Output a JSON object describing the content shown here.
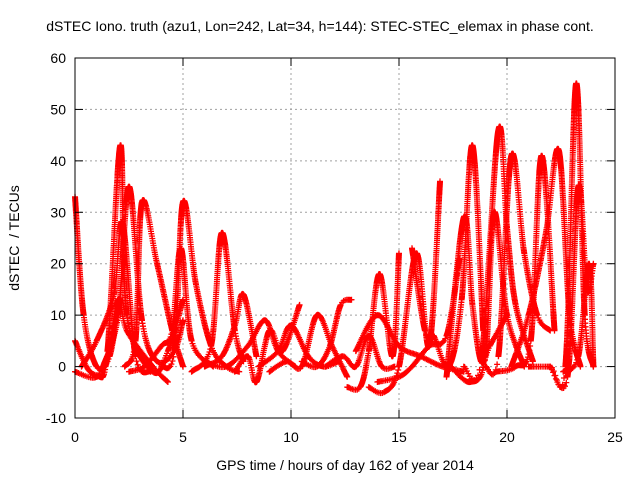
{
  "chart_data": {
    "type": "scatter",
    "title": "dSTEC Iono. truth (azu1, Lon=242, Lat=34, h=144): STEC-STEC_elemax in phase cont.",
    "xlabel": "GPS time / hours of day 162 of year 2014",
    "ylabel": "dSTEC  / TECUs",
    "xlim": [
      0,
      25
    ],
    "ylim": [
      -10,
      60
    ],
    "xticks": [
      0,
      5,
      10,
      15,
      20,
      25
    ],
    "yticks": [
      -10,
      0,
      10,
      20,
      30,
      40,
      50,
      60
    ],
    "grid": true,
    "marker": "+",
    "color": "#ff0000",
    "series": [
      {
        "x": [
          0.0,
          0.4,
          1.0,
          1.6,
          2.0
        ],
        "y": [
          33,
          10,
          0,
          2,
          12
        ]
      },
      {
        "x": [
          0.0,
          0.7,
          1.4,
          2.0,
          2.4,
          3.6,
          4.3
        ],
        "y": [
          5,
          -1,
          0,
          13,
          7,
          0,
          -3
        ]
      },
      {
        "x": [
          0.3,
          1.0,
          1.8,
          2.2,
          2.8,
          3.5
        ],
        "y": [
          0,
          5,
          14,
          28,
          2,
          -1
        ]
      },
      {
        "x": [
          0.0,
          1.0,
          1.5,
          2.1,
          2.4,
          3.6,
          4.3,
          5.0
        ],
        "y": [
          -1,
          -2,
          3,
          43,
          10,
          -1,
          3,
          13
        ]
      },
      {
        "x": [
          1.3,
          2.0,
          2.5,
          3.1,
          3.8,
          4.6,
          5.0
        ],
        "y": [
          0,
          10,
          35,
          9,
          1,
          3,
          9
        ]
      },
      {
        "x": [
          2.3,
          2.8,
          3.1,
          3.8,
          4.5,
          5.0
        ],
        "y": [
          0,
          5,
          32,
          20,
          7,
          0
        ]
      },
      {
        "x": [
          2.5,
          3.2,
          4.0,
          4.5,
          4.9,
          5.4,
          6.4
        ],
        "y": [
          -1,
          0,
          4,
          7,
          23,
          5,
          0
        ]
      },
      {
        "x": [
          4.0,
          4.6,
          5.0,
          5.6,
          6.3,
          7.0,
          7.6
        ],
        "y": [
          0,
          3,
          32,
          16,
          4,
          0,
          -1
        ]
      },
      {
        "x": [
          5.4,
          6.3,
          6.8,
          7.4,
          7.8
        ],
        "y": [
          -1,
          4,
          26,
          7,
          1
        ]
      },
      {
        "x": [
          6.0,
          6.8,
          7.4,
          7.8,
          8.4
        ],
        "y": [
          0,
          2,
          8,
          14,
          2
        ]
      },
      {
        "x": [
          6.0,
          7.0,
          8.0,
          8.8,
          9.4,
          10.2
        ],
        "y": [
          1,
          0,
          4,
          9,
          3,
          0
        ]
      },
      {
        "x": [
          7.4,
          8.0,
          8.4,
          9.0,
          9.6,
          10.4
        ],
        "y": [
          -1,
          2,
          -3,
          7,
          3,
          12
        ]
      },
      {
        "x": [
          8.5,
          9.4,
          10.0,
          10.8,
          11.5,
          12.2
        ],
        "y": [
          0,
          3,
          8,
          2,
          0,
          1
        ]
      },
      {
        "x": [
          9.0,
          9.8,
          10.5,
          11.2,
          11.9,
          12.6
        ],
        "y": [
          -1,
          1,
          0,
          10,
          4,
          -2
        ]
      },
      {
        "x": [
          10.5,
          11.2,
          11.8,
          12.3,
          12.8
        ],
        "y": [
          1,
          0,
          4,
          12,
          13
        ]
      },
      {
        "x": [
          11.6,
          12.4,
          13.0,
          13.6,
          14.2,
          14.8
        ],
        "y": [
          0,
          2,
          0,
          6,
          0,
          0
        ]
      },
      {
        "x": [
          12.6,
          13.2,
          13.6,
          14.1,
          14.7,
          15.0
        ],
        "y": [
          -4,
          -4,
          3,
          18,
          2,
          22
        ]
      },
      {
        "x": [
          13.6,
          14.3,
          15.0,
          15.8,
          16.4,
          16.9
        ],
        "y": [
          -4,
          -5,
          0,
          22,
          4,
          36
        ]
      },
      {
        "x": [
          13.0,
          14.0,
          15.0,
          16.0,
          17.0,
          18.0
        ],
        "y": [
          3,
          10,
          4,
          2,
          0,
          -1
        ]
      },
      {
        "x": [
          14.0,
          15.0,
          15.6,
          16.4,
          17.2,
          17.8
        ],
        "y": [
          -3,
          -2,
          0,
          4,
          6,
          21
        ]
      },
      {
        "x": [
          15.6,
          16.2,
          16.6,
          17.3,
          17.9,
          18.4,
          18.9
        ],
        "y": [
          23,
          7,
          6,
          0,
          13,
          43,
          7
        ]
      },
      {
        "x": [
          17.2,
          18.0,
          18.4,
          18.8,
          19.2,
          20.0
        ],
        "y": [
          -2,
          29,
          12,
          1,
          4,
          10
        ]
      },
      {
        "x": [
          17.4,
          18.3,
          19.0,
          19.4,
          20.0,
          20.8
        ],
        "y": [
          0,
          -3,
          2,
          30,
          10,
          0
        ]
      },
      {
        "x": [
          18.0,
          18.8,
          19.6,
          20.0,
          20.4,
          21.2
        ],
        "y": [
          0,
          1,
          46,
          27,
          12,
          1
        ]
      },
      {
        "x": [
          19.0,
          19.6,
          20.2,
          20.8,
          21.4,
          22.0
        ],
        "y": [
          0,
          2,
          41,
          22,
          10,
          7
        ]
      },
      {
        "x": [
          19.5,
          20.4,
          21.1,
          21.6,
          22.2
        ],
        "y": [
          -1,
          0,
          5,
          41,
          7
        ]
      },
      {
        "x": [
          20.2,
          21.0,
          21.8,
          22.4,
          22.9,
          23.4
        ],
        "y": [
          0,
          10,
          26,
          42,
          10,
          0
        ]
      },
      {
        "x": [
          21.0,
          22.0,
          22.7,
          23.2,
          23.6,
          24.0
        ],
        "y": [
          0,
          0,
          0,
          55,
          10,
          0
        ]
      },
      {
        "x": [
          22.0,
          22.8,
          23.3,
          23.7,
          24.0
        ],
        "y": [
          0,
          -2,
          35,
          15,
          20
        ]
      },
      {
        "x": [
          22.6,
          23.3,
          23.8,
          24.0
        ],
        "y": [
          -1,
          2,
          20,
          0
        ]
      }
    ]
  }
}
